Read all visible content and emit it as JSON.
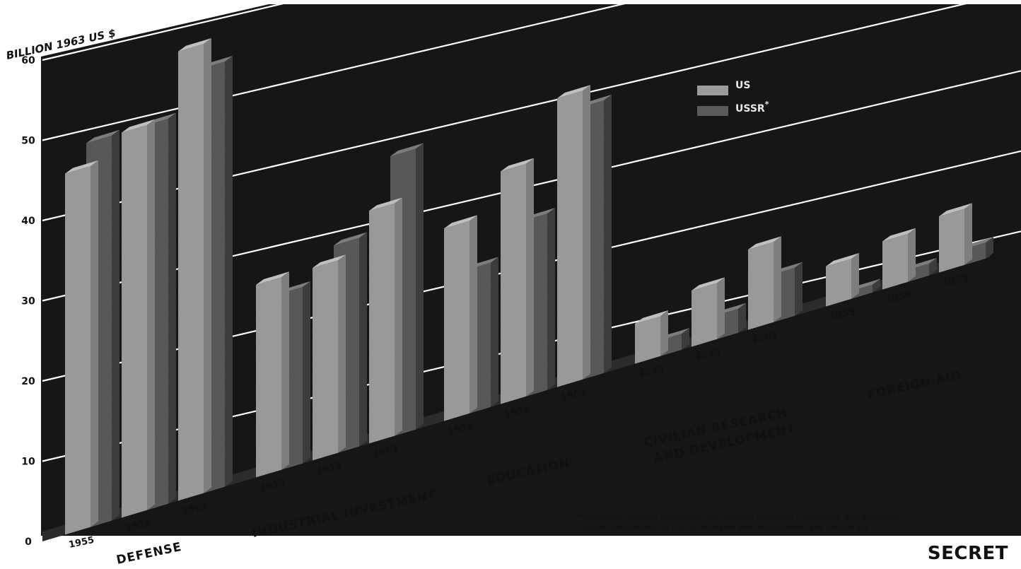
{
  "chart_data": {
    "type": "bar",
    "ylabel": "BILLION 1963 US $",
    "ylim": [
      0,
      60
    ],
    "yticks": [
      0,
      10,
      20,
      30,
      40,
      50,
      60
    ],
    "legend": {
      "placement": "top-center",
      "entries": [
        {
          "label": "US",
          "color": "#9c9c9c"
        },
        {
          "label": "USSR",
          "marker": "*",
          "color": "#5a5a5a"
        }
      ]
    },
    "groups": [
      {
        "name": "DEFENSE",
        "years": [
          "1955",
          "1958",
          "1963"
        ],
        "us": [
          45,
          48,
          56
        ],
        "ussr": [
          48,
          48,
          53
        ]
      },
      {
        "name": "INDUSTRIAL INVESTMENT",
        "years": [
          "1955",
          "1958",
          "1963"
        ],
        "us": [
          24,
          24,
          29
        ],
        "ussr": [
          22,
          26,
          35
        ]
      },
      {
        "name": "EDUCATION",
        "years": [
          "1955",
          "1958",
          "1963"
        ],
        "us": [
          24,
          29,
          36
        ],
        "ussr": [
          18,
          22,
          34
        ]
      },
      {
        "name": "CIVILIAN RESEARCH AND DEVELOPMENT",
        "years": [
          "1955",
          "1958",
          "1963"
        ],
        "us": [
          5,
          7,
          10
        ],
        "ussr": [
          2,
          3,
          6
        ]
      },
      {
        "name": "FOREIGN AID",
        "years": [
          "1955",
          "1958",
          "1963"
        ],
        "us": [
          5,
          6,
          7
        ],
        "ussr": [
          1,
          1.5,
          2
        ]
      }
    ]
  },
  "footnote": {
    "marker": "*",
    "line1": "Geometric average comparison for defense, industrial investment, and education;",
    "line2": "dollar comparisons for civilian research and development and foreign aid."
  },
  "classification": "SECRET",
  "colors": {
    "background": "#161616",
    "floor": "#2c2c2c",
    "gridline": "#ffffff",
    "us_bar": "#9c9c9c",
    "ussr_bar": "#5a5a5a"
  }
}
